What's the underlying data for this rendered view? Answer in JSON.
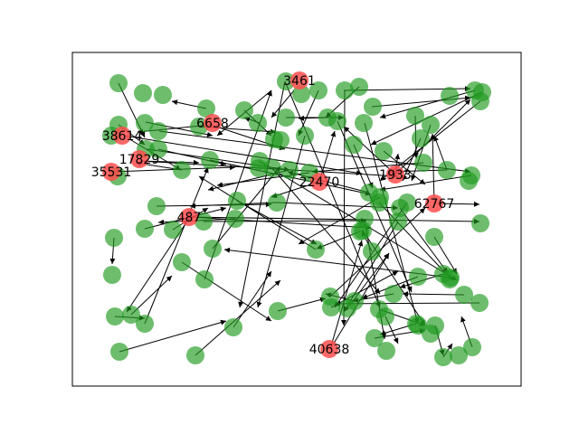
{
  "colors": {
    "normal_node": "#1f9a1f",
    "highlight_node": "#ff4d4d",
    "edge": "#000000",
    "frame": "#000000"
  },
  "labels": [
    {
      "id": "n3461",
      "text": "3461"
    },
    {
      "id": "n6658",
      "text": "6658"
    },
    {
      "id": "n38614",
      "text": "38614"
    },
    {
      "id": "n17829",
      "text": "17829"
    },
    {
      "id": "n35531",
      "text": "35531"
    },
    {
      "id": "n22470",
      "text": "22470"
    },
    {
      "id": "n1933",
      "text": "1933"
    },
    {
      "id": "n62767",
      "text": "62767"
    },
    {
      "id": "n487",
      "text": "487"
    },
    {
      "id": "n40638",
      "text": "40638"
    }
  ]
}
